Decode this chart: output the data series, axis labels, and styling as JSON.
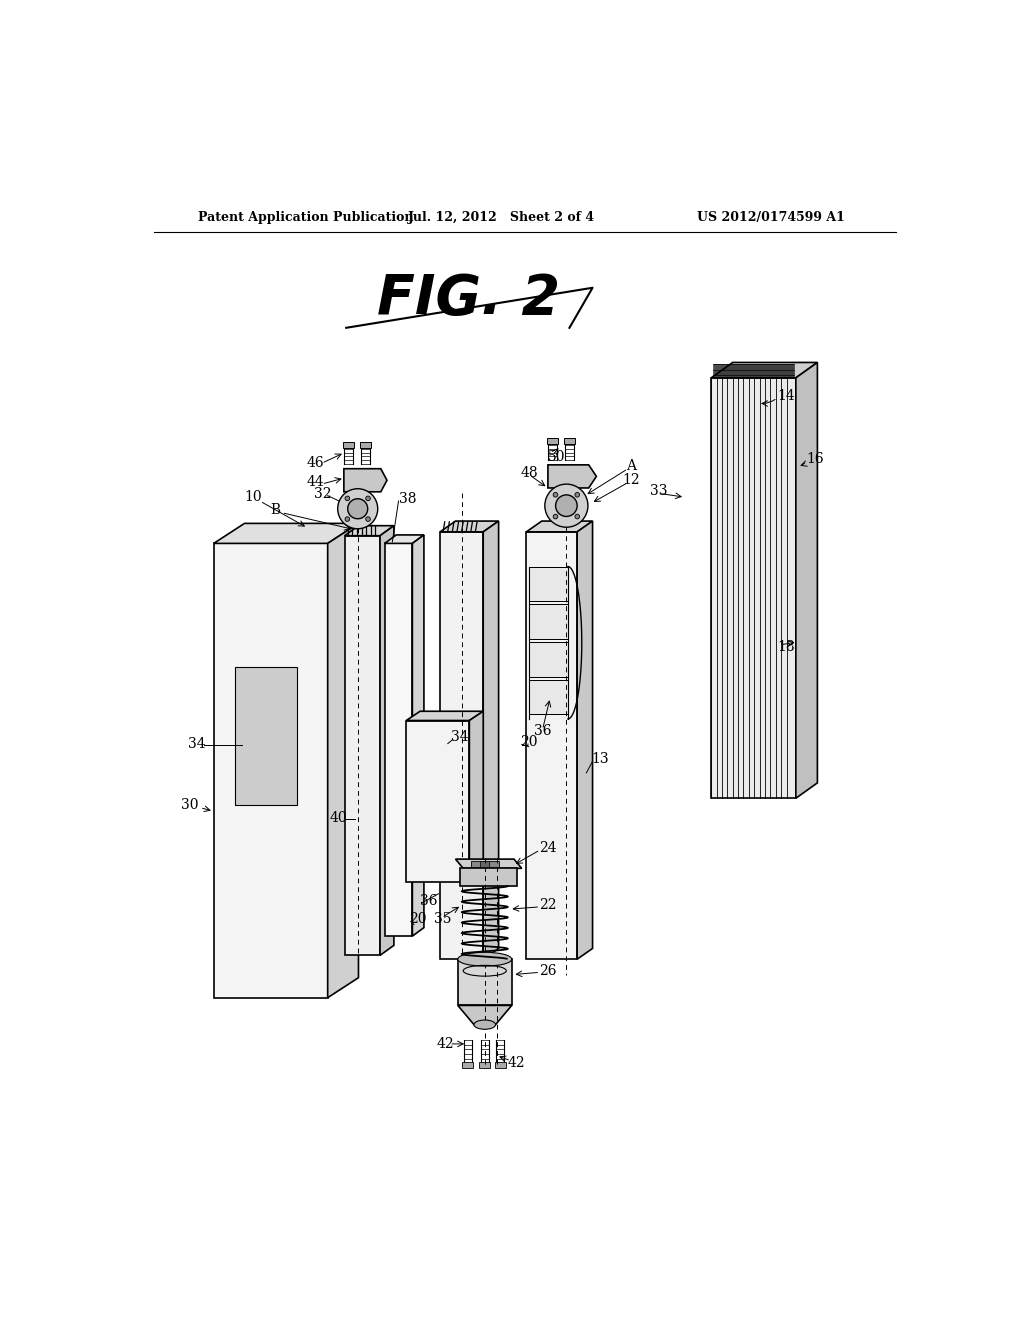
{
  "bg_color": "#ffffff",
  "header_left": "Patent Application Publication",
  "header_center": "Jul. 12, 2012   Sheet 2 of 4",
  "header_right": "US 2012/0174599 A1",
  "fig_label": "FIG. 2",
  "lc": "#000000",
  "fc_light": "#f5f5f5",
  "fc_mid": "#e0e0e0",
  "fc_dark": "#c8c8c8",
  "fc_darker": "#aaaaaa",
  "fc_window": "#cccccc",
  "lbl_fontsize": 10
}
